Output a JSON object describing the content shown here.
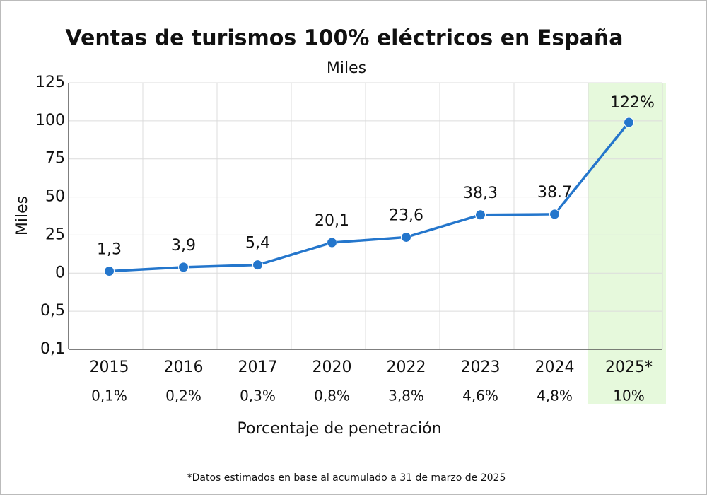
{
  "chart_data": {
    "type": "line",
    "title": "Ventas de turismos 100% eléctricos en España",
    "subtitle": "Miles",
    "y_label": "Miles",
    "x_label": "Porcentaje de penetración",
    "footnote": "*Datos estimados en base al acumulado a 31 de marzo de 2025",
    "categories": [
      "2015",
      "2016",
      "2017",
      "2020",
      "2022",
      "2023",
      "2024",
      "2025*"
    ],
    "penetration": [
      "0,1%",
      "0,2%",
      "0,3%",
      "0,8%",
      "3,8%",
      "4,6%",
      "4,8%",
      "10%"
    ],
    "series": [
      {
        "name": "Miles",
        "color": "#2476cc",
        "values": [
          1.3,
          3.9,
          5.4,
          20.1,
          23.6,
          38.3,
          38.7,
          99
        ],
        "value_labels": [
          "1,3",
          "3,9",
          "5,4",
          "20,1",
          "23,6",
          "38,3",
          "38.7",
          null
        ]
      }
    ],
    "annotation": "122%",
    "yticks": [
      {
        "value": 0.1,
        "label": "0,1"
      },
      {
        "value": 0.5,
        "label": "0,5"
      },
      0,
      25,
      50,
      75,
      100,
      125
    ],
    "grid": true,
    "highlight": {
      "category": 7,
      "color": "#e6f9dc"
    }
  }
}
